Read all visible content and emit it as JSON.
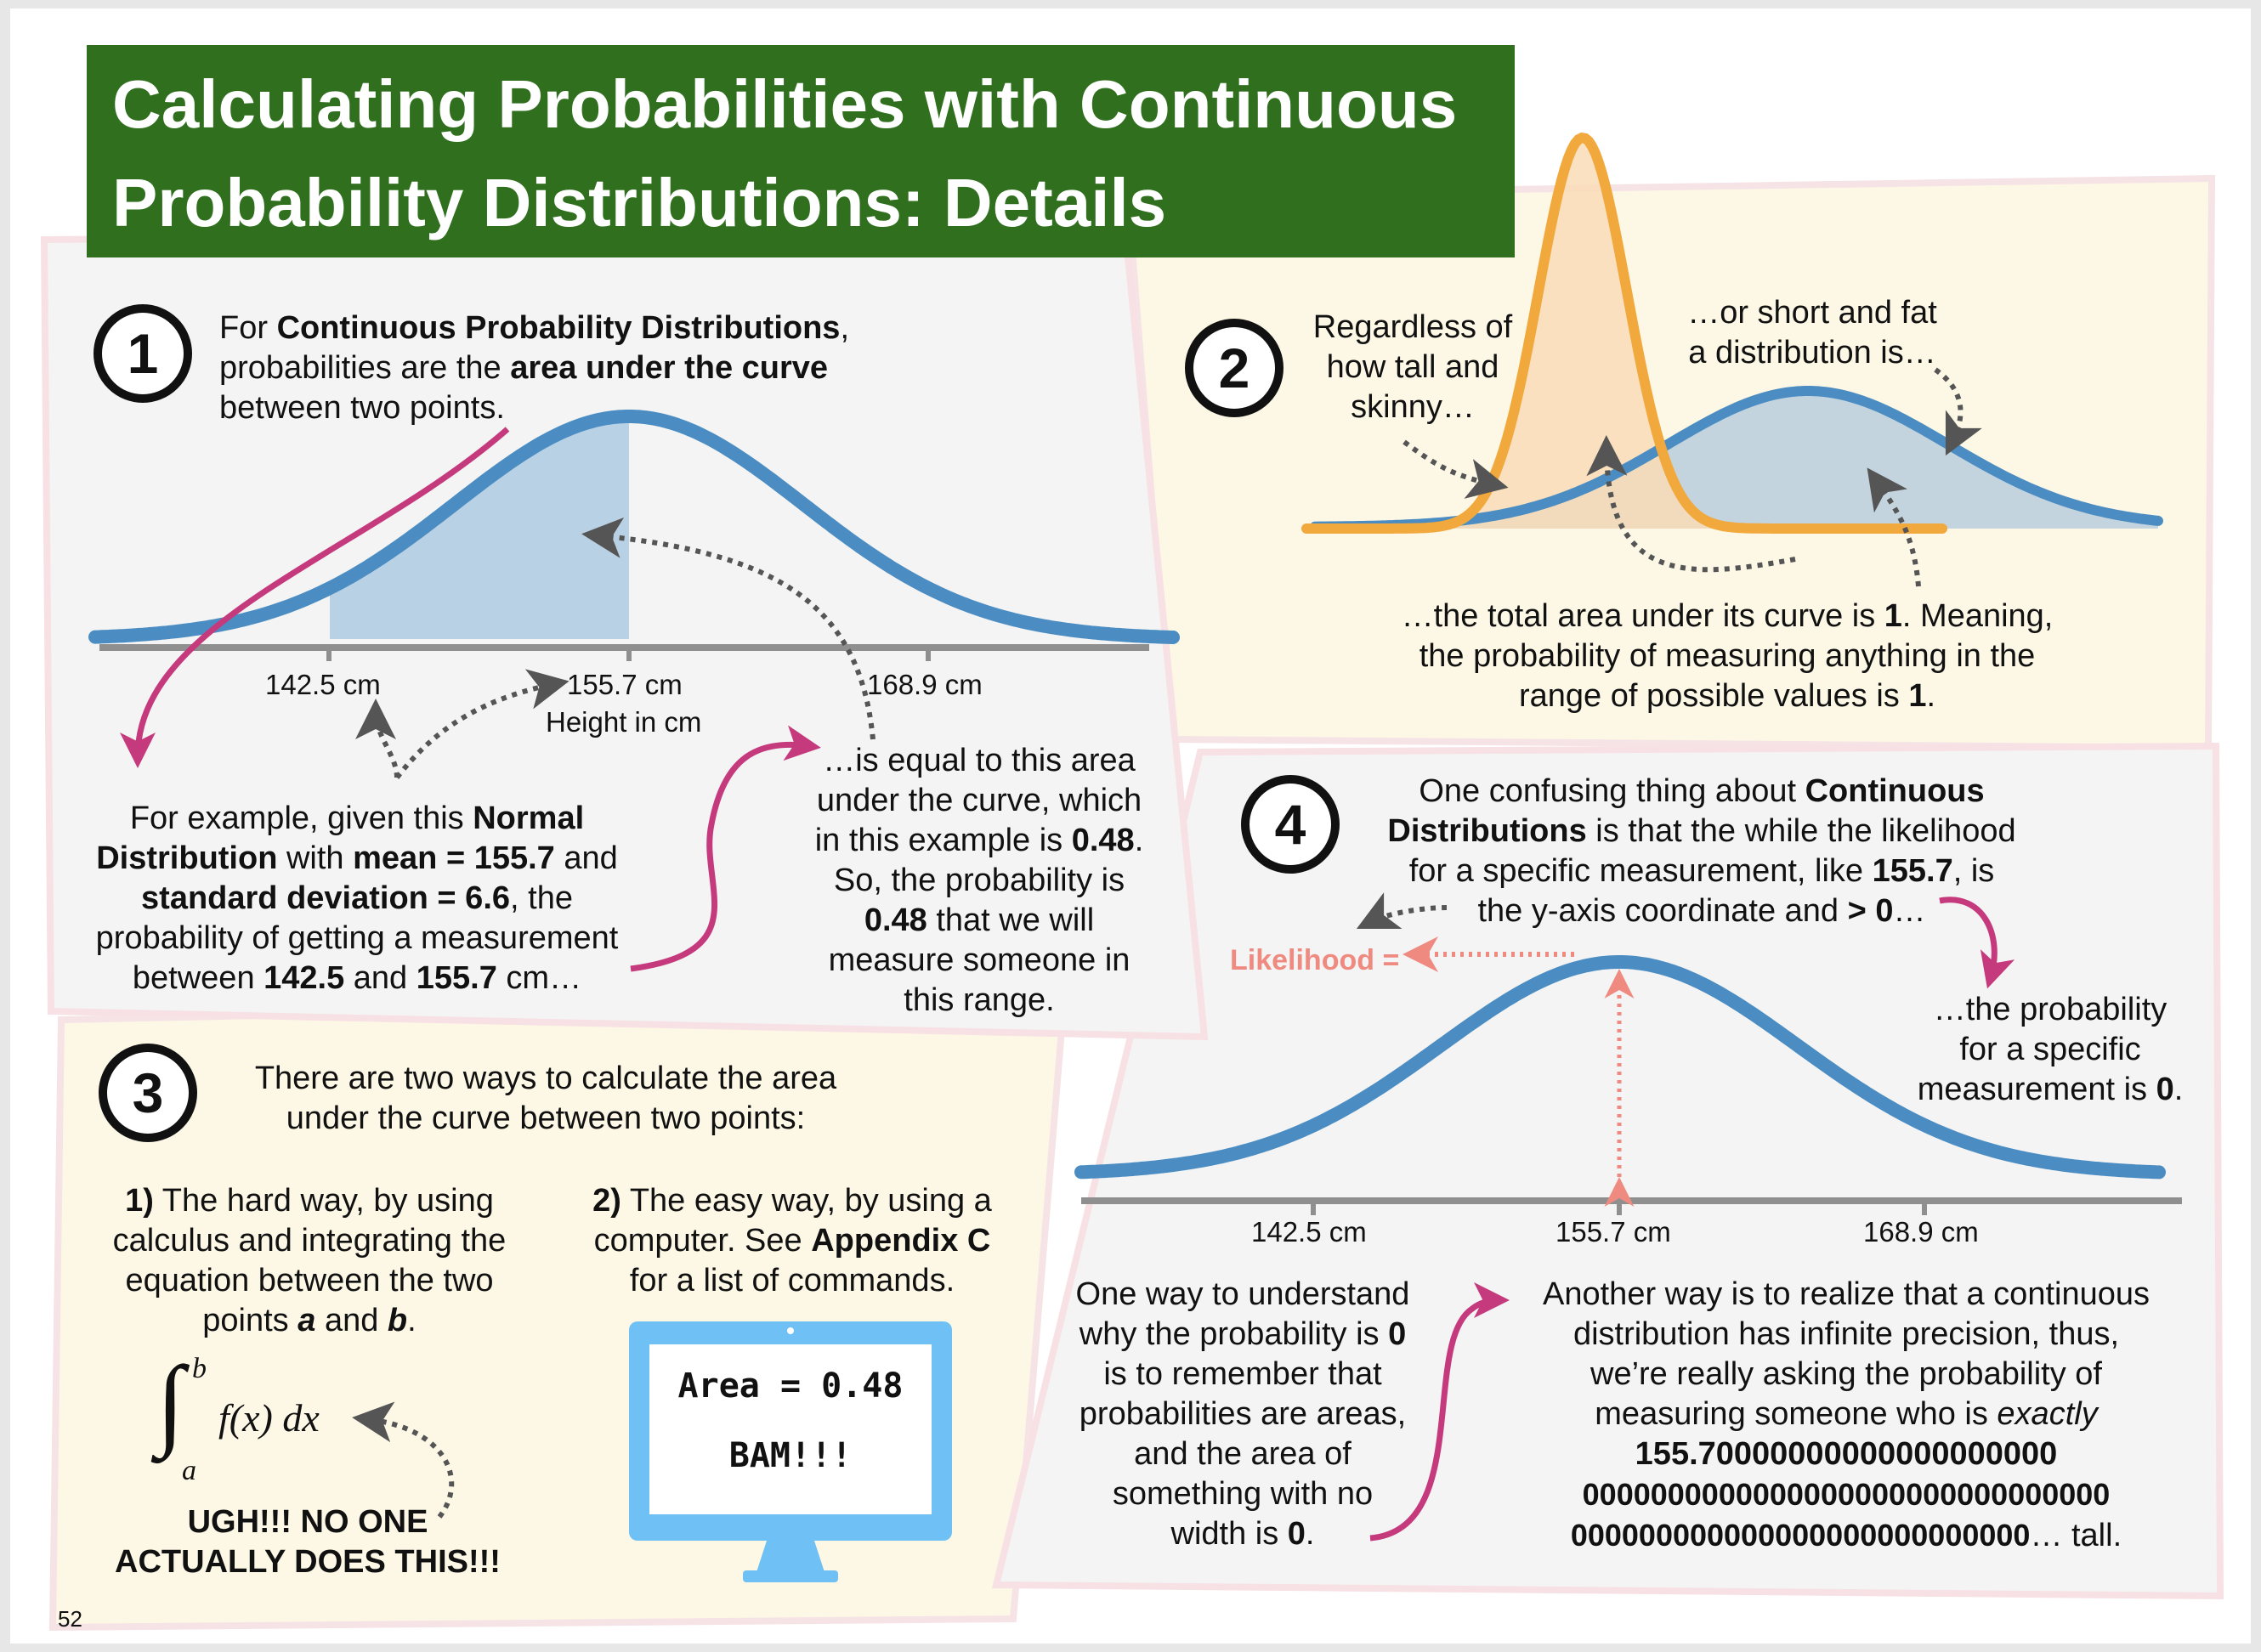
{
  "title": {
    "line1": "Calculating Probabilities with Continuous",
    "line2": "Probability Distributions: Details"
  },
  "colors": {
    "title_bg": "#2f6f1e",
    "curve": "#4b8dc2",
    "area": "#b9d1e4",
    "orange_curve": "#f1a83c",
    "orange_area": "#f9dcb6",
    "magenta_arrow": "#c53a7c",
    "likelihood": "#ef8a80",
    "monitor": "#6fc0f5"
  },
  "p1": {
    "number": "1",
    "intro": [
      "For ",
      "Continuous Probability Distributions",
      ",",
      "probabilities are the ",
      "area under the curve",
      "between two points."
    ],
    "ticks": [
      "142.5 cm",
      "155.7 cm",
      "168.9 cm"
    ],
    "axis_label": "Height in cm",
    "example": [
      "For example, given this ",
      "Normal",
      "Distribution",
      " with ",
      "mean = 155.7",
      " and",
      "standard deviation = 6.6",
      ", the",
      "probability of getting a measurement",
      "between ",
      "142.5",
      " and ",
      "155.7",
      " cm…"
    ],
    "equal": [
      "…is equal to this area",
      "under the curve, which",
      "in this example is ",
      "0.48",
      ".",
      "So, the probability is",
      "0.48",
      " that we will",
      "measure someone in",
      "this range."
    ]
  },
  "p2": {
    "number": "2",
    "tall": [
      "Regardless of",
      "how tall and",
      "skinny…"
    ],
    "short": [
      "…or short and fat",
      "a distribution is…"
    ],
    "total": [
      "…the total area under its curve is ",
      "1",
      ". Meaning,",
      "the probability of measuring anything in the",
      "range of possible values is ",
      "1",
      "."
    ]
  },
  "p3": {
    "number": "3",
    "intro": [
      "There are two ways to calculate the area",
      "under the curve between two points:"
    ],
    "hard": [
      "1)",
      " The hard way, by using",
      "calculus and integrating the",
      "equation between the two",
      "points ",
      "a",
      " and ",
      "b",
      "."
    ],
    "easy": [
      "2)",
      " The easy way, by using a",
      "computer. See ",
      "Appendix C",
      "for a list of commands."
    ],
    "integral": {
      "upper": "b",
      "lower": "a",
      "expr": "f(x) dx"
    },
    "ugh": [
      "UGH!!! NO ONE",
      "ACTUALLY DOES THIS!!!"
    ],
    "screen": [
      "Area = 0.48",
      "BAM!!!"
    ]
  },
  "p4": {
    "number": "4",
    "intro": [
      "One confusing thing about ",
      "Continuous",
      "Distributions",
      " is that the while the likelihood",
      "for a specific measurement, like ",
      "155.7",
      ", is",
      "the y-axis coordinate and ",
      "> 0",
      "…"
    ],
    "likelihood": "Likelihood =",
    "prob0": [
      "…the probability",
      "for a specific",
      "measurement is ",
      "0",
      "."
    ],
    "ticks": [
      "142.5 cm",
      "155.7 cm",
      "168.9 cm"
    ],
    "one_way": [
      "One way to understand",
      "why the probability is ",
      "0",
      "is to remember that",
      "probabilities are areas,",
      "and the area of",
      "something with no",
      "width is ",
      "0",
      "."
    ],
    "another": [
      "Another way is to realize that a continuous",
      "distribution has infinite precision, thus,",
      "we’re really asking the probability of",
      "measuring someone who is ",
      "exactly",
      "155.70000000000000000000",
      "0000000000000000000000000000000",
      "000000000000000000000000000",
      "… tall."
    ]
  },
  "page_number": "52"
}
